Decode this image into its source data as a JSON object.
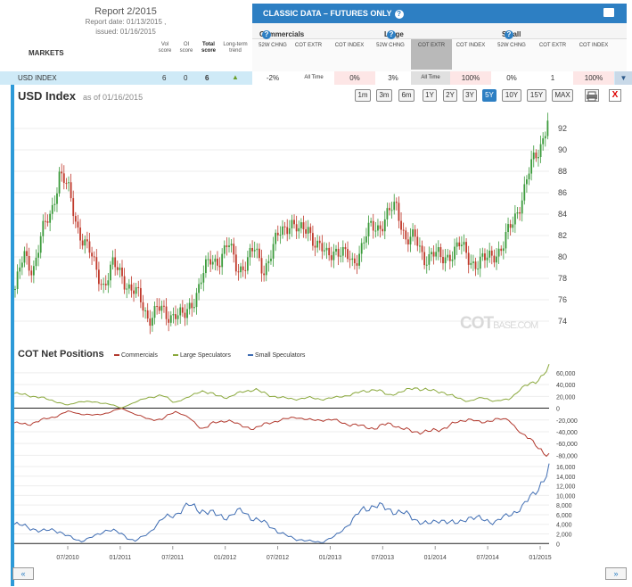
{
  "report": {
    "title": "Report 2/2015",
    "report_date": "Report date: 01/13/2015 ,",
    "issued": "issued: 01/16/2015"
  },
  "markets_header": "MARKETS",
  "score_headers": {
    "vol": "Vol score",
    "oi": "OI score",
    "total": "Total score",
    "trend": "Long-term trend"
  },
  "classic_bar": {
    "title": "CLASSIC DATA – FUTURES ONLY",
    "help": "?"
  },
  "groups": [
    {
      "label": "Commercials"
    },
    {
      "label": "Large Speculators"
    },
    {
      "label": "Small Speculators"
    }
  ],
  "subheaders": [
    "52W CHNG",
    "COT EXTR",
    "COT INDEX",
    "52W CHNG",
    "COT EXTR",
    "COT INDEX",
    "52W CHNG",
    "COT EXTR",
    "COT INDEX"
  ],
  "usd_row": {
    "market": "USD INDEX",
    "vol": "6",
    "oi": "0",
    "total": "6",
    "values": [
      "-2%",
      "All Time",
      "0%",
      "3%",
      "All Time",
      "100%",
      "0%",
      "1",
      "100%"
    ]
  },
  "chart": {
    "title": "USD Index",
    "as_of": "as of 01/16/2015"
  },
  "range_buttons": [
    "1m",
    "3m",
    "6m",
    "1Y",
    "2Y",
    "3Y",
    "5Y",
    "10Y",
    "15Y",
    "MAX"
  ],
  "selected_range": "5Y",
  "close_label": "X",
  "watermark": {
    "brand": "COT",
    "suffix": "BASE.COM"
  },
  "cot": {
    "title": "COT Net Positions",
    "legend": [
      {
        "label": "Commercials",
        "color": "#b23a2f"
      },
      {
        "label": "Large Speculators",
        "color": "#8aa83c"
      },
      {
        "label": "Small Speculators",
        "color": "#3f6db3"
      }
    ]
  },
  "nav": {
    "prev": "«",
    "next": "»"
  },
  "colors": {
    "accent": "#2d7fc3",
    "up": "#3a9a3a",
    "down": "#c0392b"
  },
  "chart_data": [
    {
      "type": "candlestick",
      "title": "USD Index",
      "y_ticks": [
        74,
        76,
        78,
        80,
        82,
        84,
        86,
        88,
        90,
        92
      ],
      "ylim": [
        72.5,
        94
      ],
      "series": [
        {
          "name": "USD Index",
          "values": [
            77,
            80,
            79,
            82,
            84,
            88,
            86,
            83,
            81,
            79,
            77.5,
            79,
            78.5,
            77,
            76,
            74.5,
            75,
            74.5,
            75,
            74,
            76,
            78,
            79.5,
            80,
            81,
            79,
            79.5,
            80.5,
            79,
            80.5,
            82.5,
            83.5,
            82,
            83,
            81,
            80,
            81,
            80,
            79.5,
            81,
            82.5,
            83,
            84,
            84.5,
            82,
            81.5,
            80,
            80.5,
            79.5,
            80.5,
            81,
            80,
            79.5,
            79.5,
            80.5,
            81,
            83,
            85.5,
            88,
            90,
            93
          ]
        }
      ]
    },
    {
      "type": "line",
      "title": "COT Net Positions",
      "x_ticks": [
        "07/2010",
        "01/2011",
        "07/2011",
        "01/2012",
        "07/2012",
        "01/2013",
        "07/2013",
        "01/2014",
        "07/2014",
        "01/2015"
      ],
      "panels": [
        {
          "y_ticks": [
            "60,000",
            "40,000",
            "20,000",
            "0",
            "-20,000",
            "-40,000",
            "-60,000",
            "-80,000"
          ],
          "ylim": [
            -90000,
            72000
          ],
          "series": [
            {
              "name": "Commercials",
              "values": [
                -25000,
                -28000,
                -20000,
                -15000,
                -5000,
                -10000,
                -12000,
                -8000,
                0,
                -10000,
                -18000,
                -20000,
                -5000,
                -15000,
                -35000,
                -25000,
                -20000,
                -30000,
                -35000,
                -25000,
                -20000,
                -15000,
                -20000,
                -20000,
                -20000,
                -28000,
                -30000,
                -35000,
                -25000,
                -35000,
                -40000,
                -40000,
                -35000,
                -25000,
                -18000,
                -25000,
                -18000,
                -20000,
                -45000,
                -60000,
                -85000
              ]
            },
            {
              "name": "Large Speculators",
              "values": [
                25000,
                22000,
                18000,
                12000,
                5000,
                12000,
                10000,
                8000,
                0,
                10000,
                18000,
                22000,
                10000,
                18000,
                30000,
                22000,
                18000,
                28000,
                32000,
                22000,
                18000,
                15000,
                18000,
                15000,
                18000,
                22000,
                28000,
                32000,
                22000,
                28000,
                35000,
                30000,
                28000,
                18000,
                12000,
                18000,
                12000,
                15000,
                35000,
                45000,
                68000
              ]
            }
          ]
        },
        {
          "y_ticks": [
            "16,000",
            "14,000",
            "12,000",
            "10,000",
            "8,000",
            "6,000",
            "4,000",
            "2,000",
            "0"
          ],
          "ylim": [
            -500,
            16000
          ],
          "series": [
            {
              "name": "Small Speculators",
              "values": [
                4000,
                3500,
                2500,
                3000,
                1500,
                500,
                1500,
                3000,
                2000,
                500,
                2000,
                5000,
                6000,
                8000,
                7000,
                6000,
                5500,
                7000,
                5000,
                4000,
                2000,
                1000,
                500,
                300,
                1500,
                4000,
                7000,
                8000,
                7000,
                6500,
                5000,
                4000,
                5000,
                4000,
                5500,
                5000,
                4500,
                6000,
                7500,
                11000,
                15000
              ]
            }
          ]
        }
      ]
    }
  ]
}
